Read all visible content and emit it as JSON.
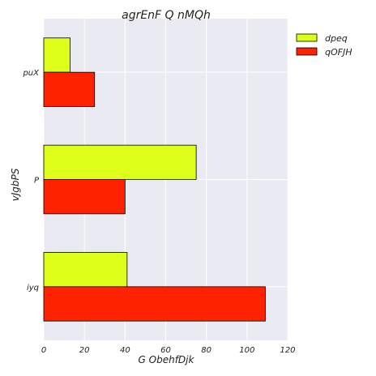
{
  "chart_data": {
    "type": "bar",
    "orientation": "horizontal",
    "title": "agrEnF  Q nMQh",
    "xlabel": "G ObehfDjk",
    "ylabel": "vJgbPS",
    "categories": [
      "puX",
      "P",
      "iyq"
    ],
    "series": [
      {
        "name": "dpeq",
        "values": [
          13,
          75,
          41
        ],
        "color": "#ddff1a"
      },
      {
        "name": "qOFJH",
        "values": [
          25,
          40,
          109
        ],
        "color": "#ff2200"
      }
    ],
    "xlim": [
      0,
      120
    ],
    "xticks": [
      "0",
      "20",
      "40",
      "60",
      "80",
      "100",
      "120"
    ],
    "grid": true,
    "legend_position": "outside-right-top"
  }
}
